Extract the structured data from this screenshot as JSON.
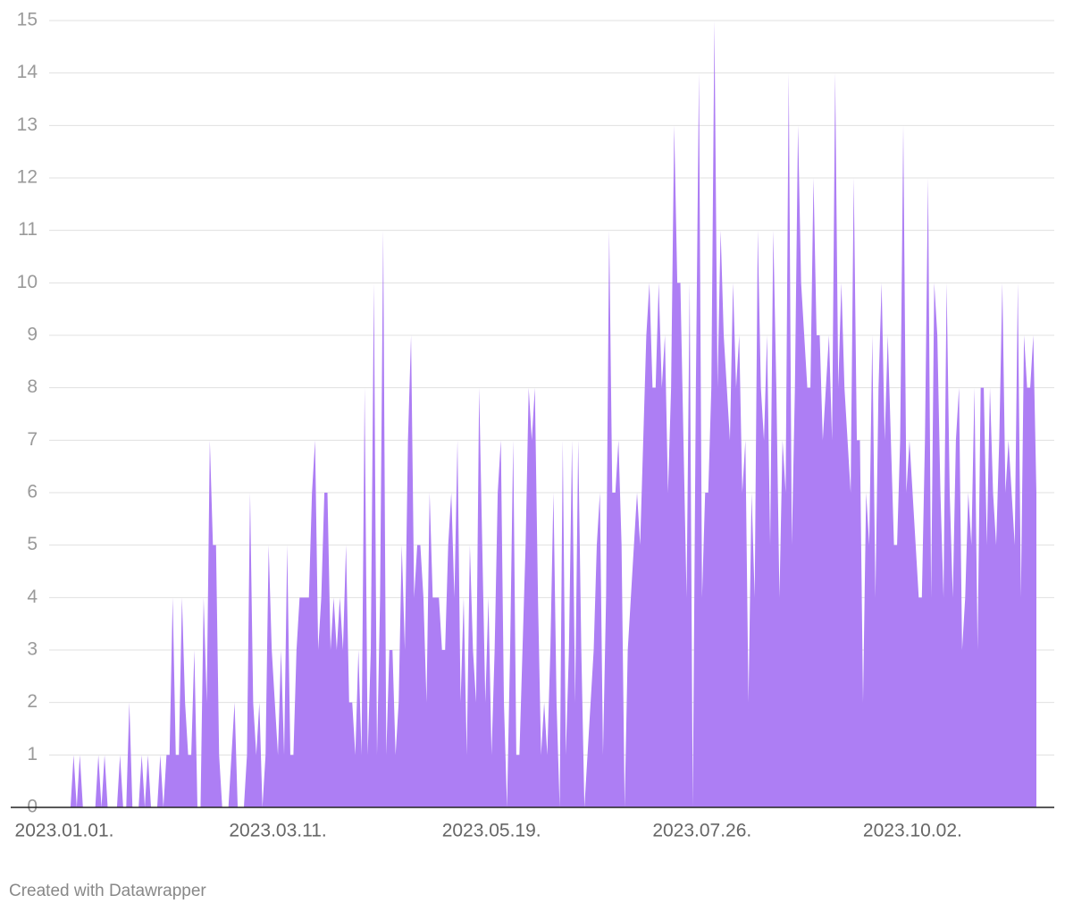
{
  "chart_data": {
    "type": "area",
    "footer": "Created with Datawrapper",
    "color": "#ad7ef4",
    "grid": true,
    "ylim": [
      0,
      15
    ],
    "yticks": [
      0,
      1,
      2,
      3,
      4,
      5,
      6,
      7,
      8,
      9,
      10,
      11,
      12,
      13,
      14,
      15
    ],
    "xlim": [
      "2023-01-01",
      "2023-11-11"
    ],
    "xticks": [
      {
        "value": "2023-01-01",
        "label": "2023.01.01."
      },
      {
        "value": "2023-03-11",
        "label": "2023.03.11."
      },
      {
        "value": "2023-05-19",
        "label": "2023.05.19."
      },
      {
        "value": "2023-07-26",
        "label": "2023.07.26."
      },
      {
        "value": "2023-10-02",
        "label": "2023.10.02."
      }
    ],
    "x": [
      "2023-01-01",
      "2023-01-02",
      "2023-01-03",
      "2023-01-04",
      "2023-01-05",
      "2023-01-06",
      "2023-01-07",
      "2023-01-08",
      "2023-01-09",
      "2023-01-10",
      "2023-01-11",
      "2023-01-12",
      "2023-01-13",
      "2023-01-14",
      "2023-01-15",
      "2023-01-16",
      "2023-01-17",
      "2023-01-18",
      "2023-01-19",
      "2023-01-20",
      "2023-01-21",
      "2023-01-22",
      "2023-01-23",
      "2023-01-24",
      "2023-01-25",
      "2023-01-26",
      "2023-01-27",
      "2023-01-28",
      "2023-01-29",
      "2023-01-30",
      "2023-01-31",
      "2023-02-01",
      "2023-02-02",
      "2023-02-03",
      "2023-02-04",
      "2023-02-05",
      "2023-02-06",
      "2023-02-07",
      "2023-02-08",
      "2023-02-09",
      "2023-02-10",
      "2023-02-11",
      "2023-02-12",
      "2023-02-13",
      "2023-02-14",
      "2023-02-15",
      "2023-02-16",
      "2023-02-17",
      "2023-02-18",
      "2023-02-19",
      "2023-02-20",
      "2023-02-21",
      "2023-02-22",
      "2023-02-23",
      "2023-02-24",
      "2023-02-25",
      "2023-02-26",
      "2023-02-27",
      "2023-02-28",
      "2023-03-01",
      "2023-03-02",
      "2023-03-03",
      "2023-03-04",
      "2023-03-05",
      "2023-03-06",
      "2023-03-07",
      "2023-03-08",
      "2023-03-09",
      "2023-03-10",
      "2023-03-11",
      "2023-03-12",
      "2023-03-13",
      "2023-03-14",
      "2023-03-15",
      "2023-03-16",
      "2023-03-17",
      "2023-03-18",
      "2023-03-19",
      "2023-03-20",
      "2023-03-21",
      "2023-03-22",
      "2023-03-23",
      "2023-03-24",
      "2023-03-25",
      "2023-03-26",
      "2023-03-27",
      "2023-03-28",
      "2023-03-29",
      "2023-03-30",
      "2023-03-31",
      "2023-04-01",
      "2023-04-02",
      "2023-04-03",
      "2023-04-04",
      "2023-04-05",
      "2023-04-06",
      "2023-04-07",
      "2023-04-08",
      "2023-04-09",
      "2023-04-10",
      "2023-04-11",
      "2023-04-12",
      "2023-04-13",
      "2023-04-14",
      "2023-04-15",
      "2023-04-16",
      "2023-04-17",
      "2023-04-18",
      "2023-04-19",
      "2023-04-20",
      "2023-04-21",
      "2023-04-22",
      "2023-04-23",
      "2023-04-24",
      "2023-04-25",
      "2023-04-26",
      "2023-04-27",
      "2023-04-28",
      "2023-04-29",
      "2023-04-30",
      "2023-05-01",
      "2023-05-02",
      "2023-05-03",
      "2023-05-04",
      "2023-05-05",
      "2023-05-06",
      "2023-05-07",
      "2023-05-08",
      "2023-05-09",
      "2023-05-10",
      "2023-05-11",
      "2023-05-12",
      "2023-05-13",
      "2023-05-14",
      "2023-05-15",
      "2023-05-16",
      "2023-05-17",
      "2023-05-18",
      "2023-05-19",
      "2023-05-20",
      "2023-05-21",
      "2023-05-22",
      "2023-05-23",
      "2023-05-24",
      "2023-05-25",
      "2023-05-26",
      "2023-05-27",
      "2023-05-28",
      "2023-05-29",
      "2023-05-30",
      "2023-05-31",
      "2023-06-01",
      "2023-06-02",
      "2023-06-03",
      "2023-06-04",
      "2023-06-05",
      "2023-06-06",
      "2023-06-07",
      "2023-06-08",
      "2023-06-09",
      "2023-06-10",
      "2023-06-11",
      "2023-06-12",
      "2023-06-13",
      "2023-06-14",
      "2023-06-15",
      "2023-06-16",
      "2023-06-17",
      "2023-06-18",
      "2023-06-19",
      "2023-06-20",
      "2023-06-21",
      "2023-06-22",
      "2023-06-23",
      "2023-06-24",
      "2023-06-25",
      "2023-06-26",
      "2023-06-27",
      "2023-06-28",
      "2023-06-29",
      "2023-06-30",
      "2023-07-01",
      "2023-07-02",
      "2023-07-03",
      "2023-07-04",
      "2023-07-05",
      "2023-07-06",
      "2023-07-07",
      "2023-07-08",
      "2023-07-09",
      "2023-07-10",
      "2023-07-11",
      "2023-07-12",
      "2023-07-13",
      "2023-07-14",
      "2023-07-15",
      "2023-07-16",
      "2023-07-17",
      "2023-07-18",
      "2023-07-19",
      "2023-07-20",
      "2023-07-21",
      "2023-07-22",
      "2023-07-23",
      "2023-07-24",
      "2023-07-25",
      "2023-07-26",
      "2023-07-27",
      "2023-07-28",
      "2023-07-29",
      "2023-07-30",
      "2023-07-31",
      "2023-08-01",
      "2023-08-02",
      "2023-08-03",
      "2023-08-04",
      "2023-08-05",
      "2023-08-06",
      "2023-08-07",
      "2023-08-08",
      "2023-08-09",
      "2023-08-10",
      "2023-08-11",
      "2023-08-12",
      "2023-08-13",
      "2023-08-14",
      "2023-08-15",
      "2023-08-16",
      "2023-08-17",
      "2023-08-18",
      "2023-08-19",
      "2023-08-20",
      "2023-08-21",
      "2023-08-22",
      "2023-08-23",
      "2023-08-24",
      "2023-08-25",
      "2023-08-26",
      "2023-08-27",
      "2023-08-28",
      "2023-08-29",
      "2023-08-30",
      "2023-08-31",
      "2023-09-01",
      "2023-09-02",
      "2023-09-03",
      "2023-09-04",
      "2023-09-05",
      "2023-09-06",
      "2023-09-07",
      "2023-09-08",
      "2023-09-09",
      "2023-09-10",
      "2023-09-11",
      "2023-09-12",
      "2023-09-13",
      "2023-09-14",
      "2023-09-15",
      "2023-09-16",
      "2023-09-17",
      "2023-09-18",
      "2023-09-19",
      "2023-09-20",
      "2023-09-21",
      "2023-09-22",
      "2023-09-23",
      "2023-09-24",
      "2023-09-25",
      "2023-09-26",
      "2023-09-27",
      "2023-09-28",
      "2023-09-29",
      "2023-09-30",
      "2023-10-01",
      "2023-10-02",
      "2023-10-03",
      "2023-10-04",
      "2023-10-05",
      "2023-10-06",
      "2023-10-07",
      "2023-10-08",
      "2023-10-09",
      "2023-10-10",
      "2023-10-11",
      "2023-10-12",
      "2023-10-13",
      "2023-10-14",
      "2023-10-15",
      "2023-10-16",
      "2023-10-17",
      "2023-10-18",
      "2023-10-19",
      "2023-10-20",
      "2023-10-21",
      "2023-10-22",
      "2023-10-23",
      "2023-10-24",
      "2023-10-25",
      "2023-10-26",
      "2023-10-27",
      "2023-10-28",
      "2023-10-29",
      "2023-10-30",
      "2023-10-31",
      "2023-11-01",
      "2023-11-02",
      "2023-11-03",
      "2023-11-04",
      "2023-11-05",
      "2023-11-06",
      "2023-11-07",
      "2023-11-08",
      "2023-11-09",
      "2023-11-10",
      "2023-11-11"
    ],
    "values": [
      0,
      0,
      0,
      1,
      0,
      1,
      0,
      0,
      0,
      0,
      0,
      1,
      0,
      1,
      0,
      0,
      0,
      0,
      1,
      0,
      0,
      2,
      0,
      0,
      0,
      1,
      0,
      1,
      0,
      0,
      0,
      1,
      0,
      1,
      1,
      4,
      1,
      1,
      4,
      2,
      1,
      1,
      3,
      0,
      0,
      4,
      2,
      7,
      5,
      5,
      1,
      0,
      0,
      0,
      1,
      2,
      0,
      0,
      0,
      1,
      6,
      2,
      1,
      2,
      0,
      1,
      5,
      3,
      2,
      1,
      3,
      1,
      5,
      1,
      1,
      3,
      4,
      4,
      4,
      4,
      6,
      7,
      3,
      4,
      6,
      6,
      3,
      4,
      3,
      4,
      3,
      5,
      2,
      2,
      1,
      3,
      1,
      8,
      1,
      3,
      10,
      1,
      4,
      11,
      1,
      3,
      3,
      1,
      2,
      5,
      3,
      7,
      9,
      4,
      5,
      5,
      4,
      2,
      6,
      4,
      4,
      4,
      3,
      3,
      5,
      6,
      4,
      7,
      2,
      4,
      1,
      5,
      3,
      2,
      8,
      5,
      2,
      4,
      1,
      3,
      6,
      7,
      2,
      0,
      3,
      7,
      1,
      1,
      3,
      5,
      8,
      7,
      8,
      4,
      1,
      2,
      1,
      3,
      6,
      2,
      0,
      7,
      1,
      3,
      7,
      2,
      7,
      3,
      0,
      1,
      2,
      3,
      5,
      6,
      1,
      4,
      11,
      6,
      6,
      7,
      5,
      0,
      3,
      4,
      5,
      6,
      5,
      7,
      9,
      10,
      8,
      8,
      10,
      8,
      9,
      6,
      8,
      13,
      10,
      10,
      7,
      4,
      10,
      0,
      8,
      14,
      4,
      6,
      6,
      8,
      15,
      8,
      11,
      9,
      8,
      7,
      10,
      8,
      9,
      6,
      7,
      2,
      6,
      4,
      11,
      8,
      7,
      9,
      5,
      11,
      8,
      4,
      7,
      6,
      14,
      5,
      8,
      13,
      10,
      9,
      8,
      8,
      12,
      9,
      9,
      7,
      8,
      9,
      7,
      14,
      8,
      10,
      8,
      7,
      6,
      12,
      7,
      7,
      2,
      6,
      5,
      9,
      4,
      8,
      10,
      7,
      9,
      7,
      5,
      5,
      7,
      13,
      6,
      7,
      6,
      5,
      4,
      4,
      7,
      12,
      4,
      10,
      9,
      6,
      4,
      10,
      6,
      4,
      7,
      8,
      3,
      4,
      6,
      5,
      8,
      3,
      8,
      8,
      5,
      8,
      6,
      5,
      7,
      10,
      6,
      7,
      6,
      5,
      10,
      4,
      9,
      8,
      8,
      9,
      6
    ]
  }
}
